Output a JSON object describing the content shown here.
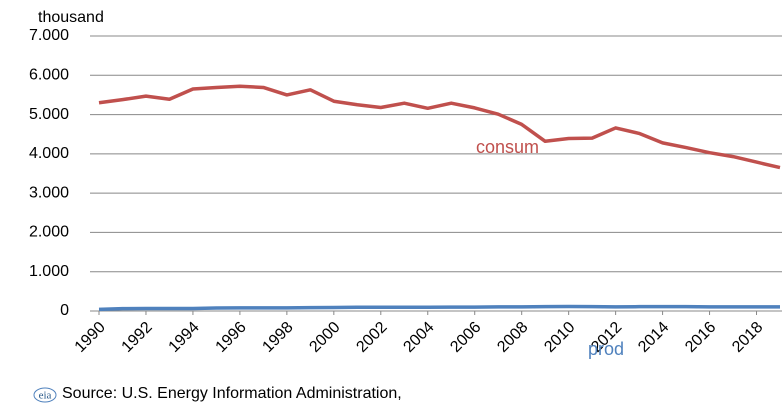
{
  "chart_data": {
    "type": "line",
    "y_label": "thousand",
    "source": "Source: U.S. Energy Information Administration,",
    "logo": "eia",
    "x": [
      1990,
      1991,
      1992,
      1993,
      1994,
      1995,
      1996,
      1997,
      1998,
      1999,
      2000,
      2001,
      2002,
      2003,
      2004,
      2005,
      2006,
      2007,
      2008,
      2009,
      2010,
      2011,
      2012,
      2013,
      2014,
      2015,
      2016,
      2017,
      2018,
      2019
    ],
    "xlim": [
      1990,
      2019
    ],
    "xticks": [
      1990,
      1992,
      1994,
      1996,
      1998,
      2000,
      2002,
      2004,
      2006,
      2008,
      2010,
      2012,
      2014,
      2016,
      2018
    ],
    "ylim": [
      0,
      7000
    ],
    "yticks": [
      0,
      {
        "value": 1000,
        "label": "1.000"
      },
      {
        "value": 2000,
        "label": "2.000"
      },
      {
        "value": 3000,
        "label": "3.000"
      },
      {
        "value": 4000,
        "label": "4.000"
      },
      {
        "value": 5000,
        "label": "5.000"
      },
      {
        "value": 6000,
        "label": "6.000"
      },
      {
        "value": 7000,
        "label": "7.000"
      }
    ],
    "grid": true,
    "series": [
      {
        "name": "consum",
        "color": "#c0504d",
        "values": [
          5300,
          5380,
          5470,
          5390,
          5650,
          5690,
          5720,
          5690,
          5500,
          5630,
          5340,
          5250,
          5180,
          5290,
          5160,
          5290,
          5170,
          5010,
          4750,
          4320,
          4390,
          4400,
          4660,
          4520,
          4280,
          4160,
          4030,
          3930,
          3790,
          3650
        ]
      },
      {
        "name": "prod",
        "color": "#4f81bd",
        "values": [
          40,
          60,
          65,
          65,
          65,
          75,
          80,
          80,
          80,
          85,
          90,
          95,
          95,
          95,
          95,
          100,
          100,
          105,
          105,
          110,
          115,
          110,
          105,
          110,
          110,
          110,
          105,
          105,
          105,
          105
        ]
      }
    ]
  }
}
